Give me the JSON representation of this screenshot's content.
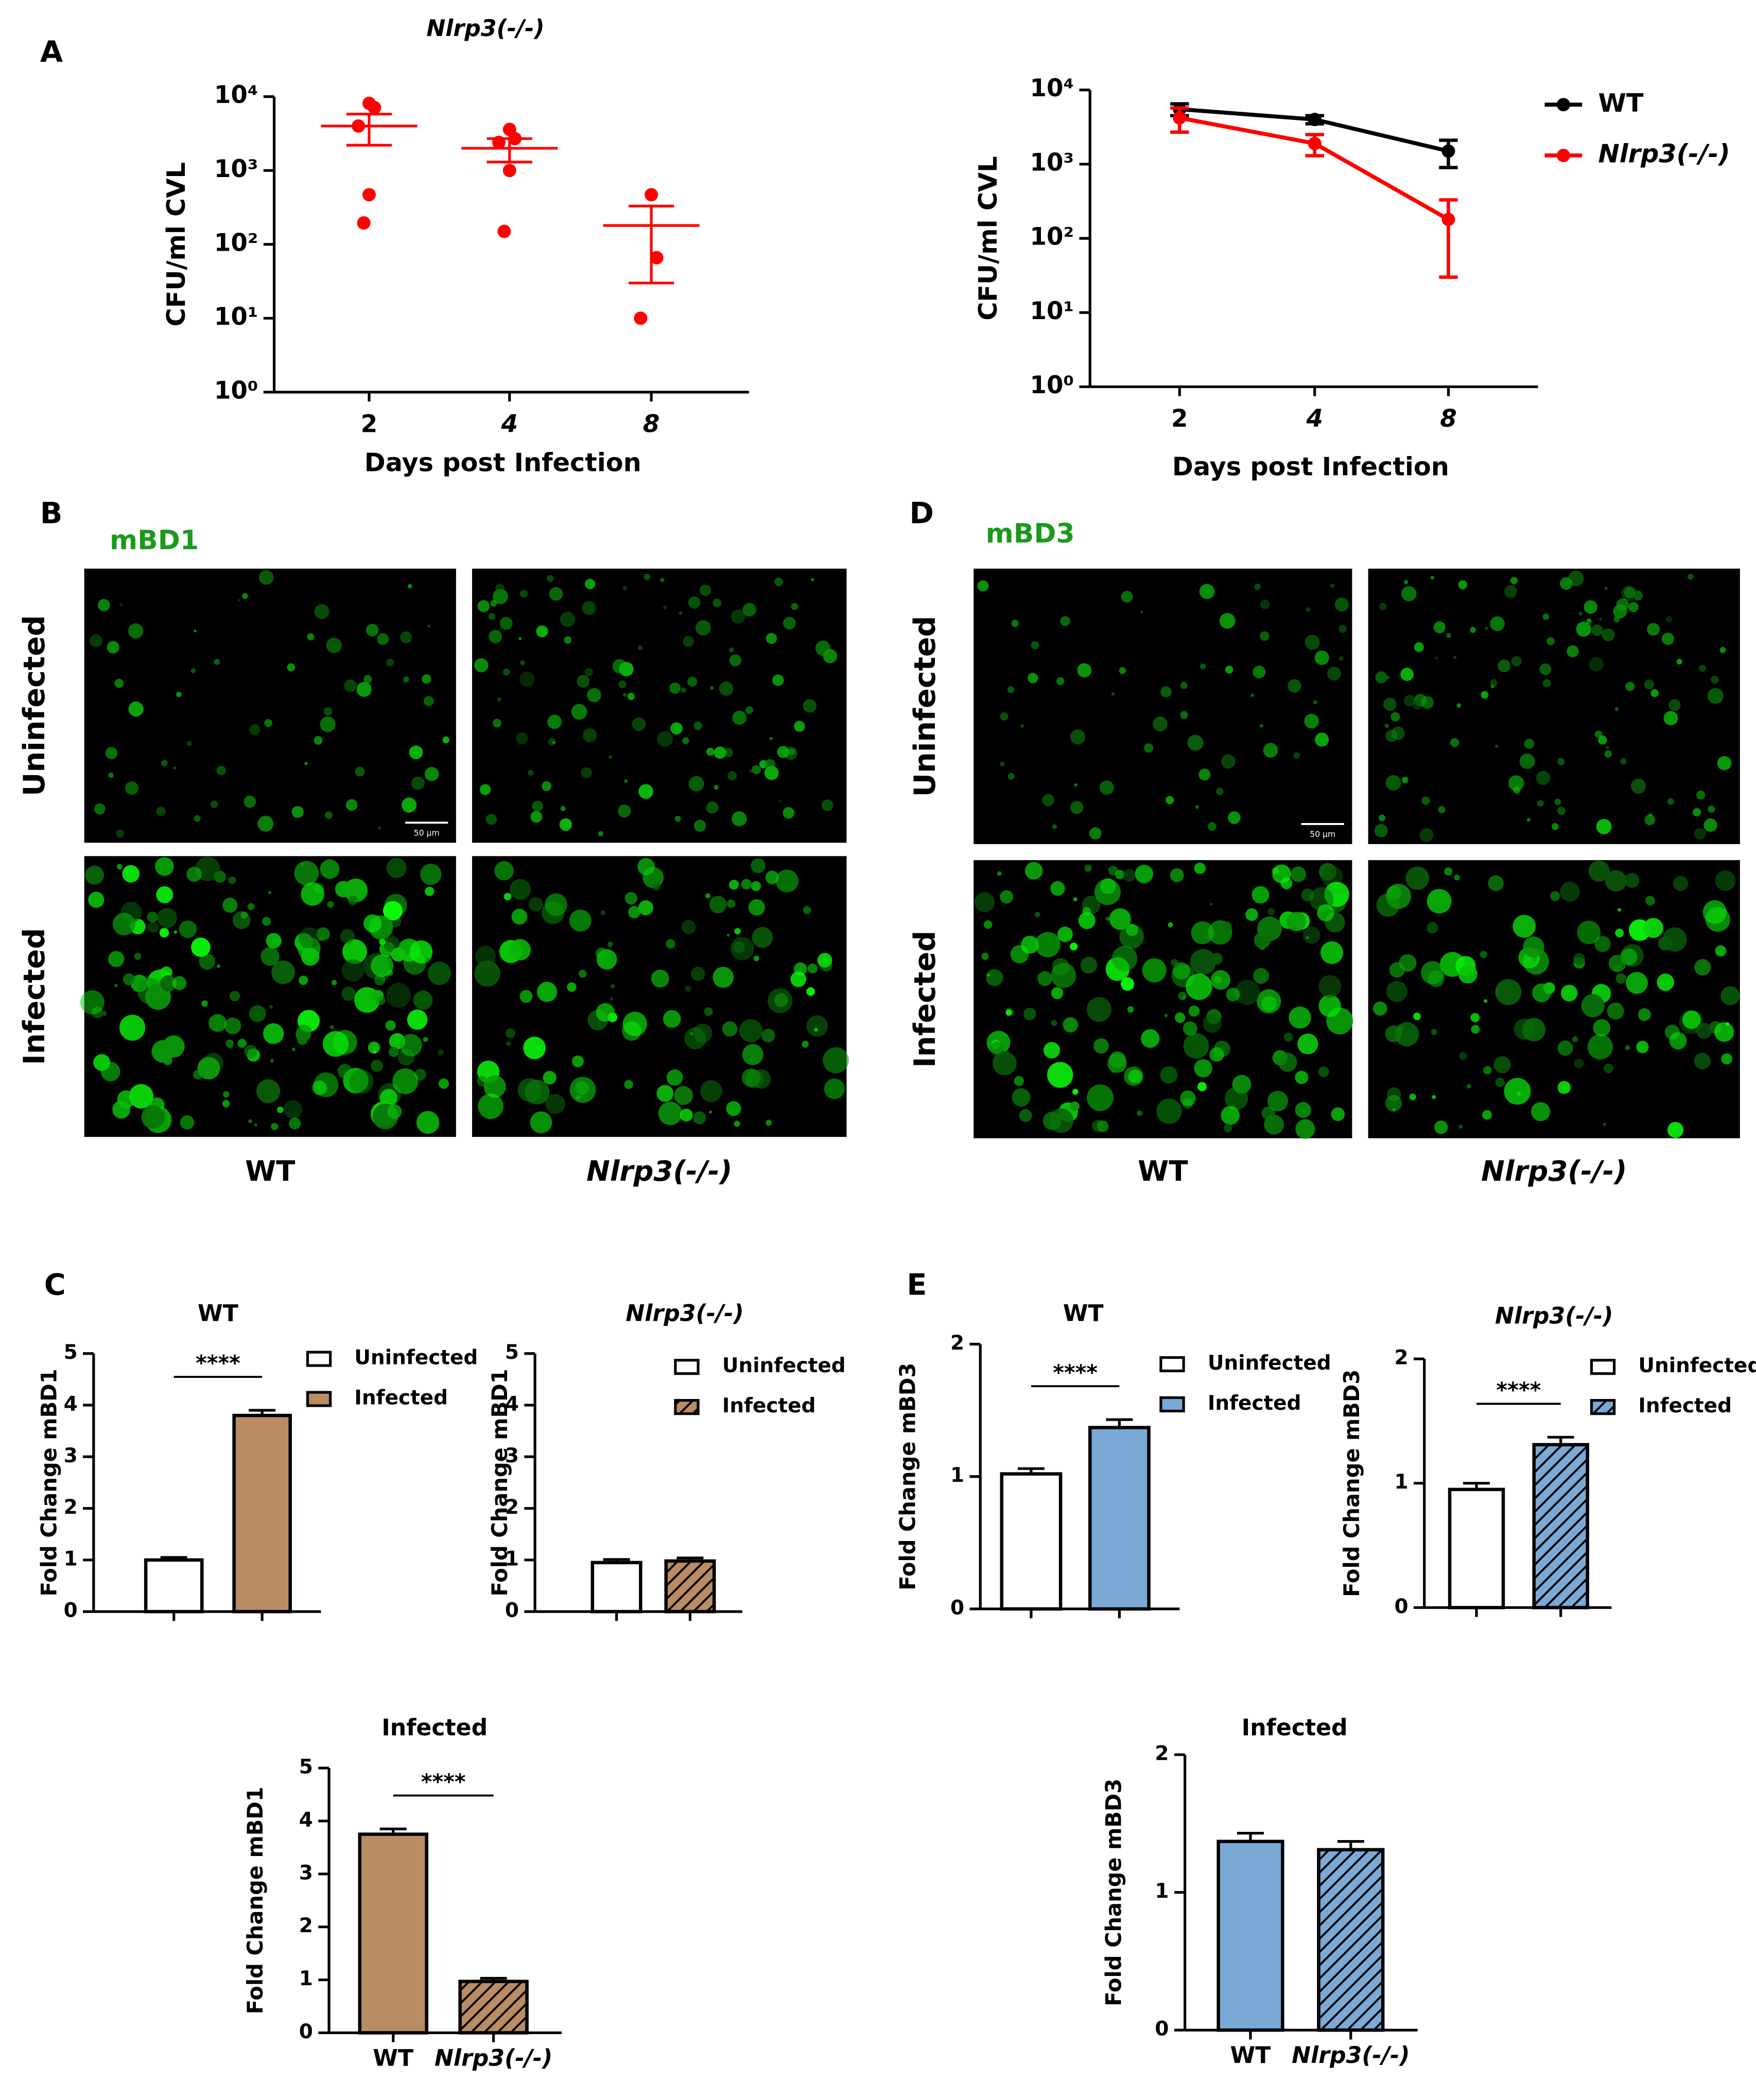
{
  "figure": {
    "panels": [
      "A",
      "B",
      "C",
      "D",
      "E"
    ],
    "microscopy": [
      {
        "stain": "mBD1",
        "rows": [
          "Uninfected",
          "Infected"
        ],
        "columns": [
          "WT",
          "Nlrp3(-/-)"
        ],
        "scale_bar": "50 μm"
      },
      {
        "stain": "mBD3",
        "rows": [
          "Uninfected",
          "Infected"
        ],
        "columns": [
          "WT",
          "Nlrp3(-/-)"
        ],
        "scale_bar": "50 μm"
      }
    ]
  },
  "chart_data": [
    {
      "type": "dot",
      "title": "Nlrp3(-/-)",
      "y_label": "CFU/ml CVL",
      "x_label": "Days post Infection",
      "color": "#ff0000",
      "categories": [
        "2",
        "4",
        "8"
      ],
      "points": [
        [
          8100,
          7100,
          4000,
          470,
          195
        ],
        [
          3600,
          2700,
          2400,
          1000,
          150
        ],
        [
          470,
          66,
          10
        ]
      ],
      "mean": [
        4000,
        2000,
        180
      ],
      "sem": [
        1800,
        700,
        150
      ],
      "log_scale": true,
      "ylim": [
        1,
        10000
      ],
      "yticks": [
        {
          "value": 1,
          "label": "10⁰"
        },
        {
          "value": 10,
          "label": "10¹"
        },
        {
          "value": 100,
          "label": "10²"
        },
        {
          "value": 1000,
          "label": "10³"
        },
        {
          "value": 10000,
          "label": "10⁴"
        }
      ]
    },
    {
      "type": "line",
      "y_label": "CFU/ml CVL",
      "x_label": "Days post Infection",
      "categories": [
        "2",
        "4",
        "8"
      ],
      "series": [
        {
          "name": "WT",
          "color": "#000000",
          "values": [
            5500,
            4000,
            1500
          ],
          "errors": [
            1000,
            500,
            600
          ]
        },
        {
          "name": "Nlrp3(-/-)",
          "color": "#ff0000",
          "values": [
            4200,
            1900,
            180
          ],
          "errors": [
            1500,
            600,
            150
          ]
        }
      ],
      "log_scale": true,
      "ylim": [
        1,
        10000
      ],
      "legend": "right",
      "yticks": [
        {
          "value": 1,
          "label": "10⁰"
        },
        {
          "value": 10,
          "label": "10¹"
        },
        {
          "value": 100,
          "label": "10²"
        },
        {
          "value": 1000,
          "label": "10³"
        },
        {
          "value": 10000,
          "label": "10⁴"
        }
      ]
    },
    {
      "type": "bar",
      "title": "WT",
      "y_label": "Fold Change mBD1",
      "values": [
        1.0,
        3.8
      ],
      "errors": [
        0.05,
        0.1
      ],
      "colors": [
        "#ffffff",
        "#b98c63"
      ],
      "hatched": [
        false,
        false
      ],
      "legend": [
        "Uninfected",
        "Infected"
      ],
      "significance": "****",
      "ylim": [
        0,
        5
      ],
      "yticks": [
        0,
        1,
        2,
        3,
        4,
        5
      ]
    },
    {
      "type": "bar",
      "title": "Nlrp3(-/-)",
      "y_label": "Fold Change mBD1",
      "values": [
        0.95,
        0.98
      ],
      "errors": [
        0.06,
        0.06
      ],
      "colors": [
        "#ffffff",
        "#b98c63"
      ],
      "hatched": [
        false,
        true
      ],
      "legend": [
        "Uninfected",
        "Infected"
      ],
      "ylim": [
        0,
        5
      ],
      "yticks": [
        0,
        1,
        2,
        3,
        4,
        5
      ]
    },
    {
      "type": "bar",
      "title": "WT",
      "y_label": "Fold Change mBD3",
      "values": [
        1.02,
        1.37
      ],
      "errors": [
        0.04,
        0.06
      ],
      "colors": [
        "#ffffff",
        "#7aa9d6"
      ],
      "hatched": [
        false,
        false
      ],
      "legend": [
        "Uninfected",
        "Infected"
      ],
      "significance": "****",
      "ylim": [
        0,
        2
      ],
      "yticks": [
        0,
        1,
        2
      ]
    },
    {
      "type": "bar",
      "title": "Nlrp3(-/-)",
      "y_label": "Fold Change mBD3",
      "values": [
        0.95,
        1.31
      ],
      "errors": [
        0.05,
        0.06
      ],
      "colors": [
        "#ffffff",
        "#7aa9d6"
      ],
      "hatched": [
        false,
        true
      ],
      "legend": [
        "Uninfected",
        "Infected"
      ],
      "significance": "****",
      "ylim": [
        0,
        2
      ],
      "yticks": [
        0,
        1,
        2
      ]
    },
    {
      "type": "bar",
      "title": "Infected",
      "y_label": "Fold Change mBD1",
      "categories": [
        "WT",
        "Nlrp3(-/-)"
      ],
      "values": [
        3.75,
        0.97
      ],
      "errors": [
        0.1,
        0.06
      ],
      "colors": [
        "#b98c63",
        "#b98c63"
      ],
      "hatched": [
        false,
        true
      ],
      "significance": "****",
      "ylim": [
        0,
        5
      ],
      "yticks": [
        0,
        1,
        2,
        3,
        4,
        5
      ]
    },
    {
      "type": "bar",
      "title": "Infected",
      "y_label": "Fold Change mBD3",
      "categories": [
        "WT",
        "Nlrp3(-/-)"
      ],
      "values": [
        1.37,
        1.31
      ],
      "errors": [
        0.06,
        0.06
      ],
      "colors": [
        "#7aa9d6",
        "#7aa9d6"
      ],
      "hatched": [
        false,
        true
      ],
      "ylim": [
        0,
        2
      ],
      "yticks": [
        0,
        1,
        2
      ]
    }
  ]
}
